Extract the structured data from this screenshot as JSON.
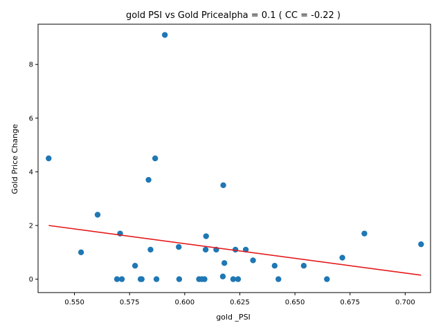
{
  "chart_data": {
    "type": "scatter",
    "title": "gold  PSI vs Gold Pricealpha = 0.1 ( CC = -0.22 )",
    "xlabel": "gold _PSI",
    "ylabel": "Gold Price Change",
    "xlim": [
      0.5335,
      0.7115
    ],
    "ylim": [
      -0.5,
      9.5
    ],
    "x_ticks": [
      0.55,
      0.575,
      0.6,
      0.625,
      0.65,
      0.675,
      0.7
    ],
    "x_tick_labels": [
      "0.550",
      "0.575",
      "0.600",
      "0.625",
      "0.650",
      "0.675",
      "0.700"
    ],
    "y_ticks": [
      0,
      2,
      4,
      6,
      8
    ],
    "y_tick_labels": [
      "0",
      "2",
      "4",
      "6",
      "8"
    ],
    "grid": false,
    "points": [
      {
        "x": 0.5383,
        "y": 4.5
      },
      {
        "x": 0.553,
        "y": 1.0
      },
      {
        "x": 0.5605,
        "y": 2.4
      },
      {
        "x": 0.5693,
        "y": 0.0
      },
      {
        "x": 0.5707,
        "y": 1.7
      },
      {
        "x": 0.5715,
        "y": 0.0
      },
      {
        "x": 0.5775,
        "y": 0.5
      },
      {
        "x": 0.58,
        "y": 0.0
      },
      {
        "x": 0.5805,
        "y": 0.0
      },
      {
        "x": 0.5836,
        "y": 3.7
      },
      {
        "x": 0.5845,
        "y": 1.1
      },
      {
        "x": 0.5866,
        "y": 4.5
      },
      {
        "x": 0.5872,
        "y": 0.0
      },
      {
        "x": 0.591,
        "y": 9.1
      },
      {
        "x": 0.5973,
        "y": 1.2
      },
      {
        "x": 0.5975,
        "y": 0.0
      },
      {
        "x": 0.6065,
        "y": 0.0
      },
      {
        "x": 0.6078,
        "y": 0.0
      },
      {
        "x": 0.609,
        "y": 0.0
      },
      {
        "x": 0.6095,
        "y": 1.1
      },
      {
        "x": 0.6097,
        "y": 1.6
      },
      {
        "x": 0.6143,
        "y": 1.1
      },
      {
        "x": 0.6173,
        "y": 0.1
      },
      {
        "x": 0.6175,
        "y": 3.5
      },
      {
        "x": 0.618,
        "y": 0.6
      },
      {
        "x": 0.622,
        "y": 0.0
      },
      {
        "x": 0.623,
        "y": 1.1
      },
      {
        "x": 0.6242,
        "y": 0.0
      },
      {
        "x": 0.6277,
        "y": 1.1
      },
      {
        "x": 0.631,
        "y": 0.7
      },
      {
        "x": 0.6408,
        "y": 0.5
      },
      {
        "x": 0.6425,
        "y": 0.0
      },
      {
        "x": 0.654,
        "y": 0.5
      },
      {
        "x": 0.6645,
        "y": 0.0
      },
      {
        "x": 0.6715,
        "y": 0.8
      },
      {
        "x": 0.6815,
        "y": 1.7
      },
      {
        "x": 0.7072,
        "y": 1.3
      }
    ],
    "regression_line": {
      "x": [
        0.5383,
        0.7072
      ],
      "y": [
        2.0,
        0.15
      ]
    },
    "colors": {
      "points": "#1f77b4",
      "line": "#e41a1c",
      "axes": "#000000"
    }
  }
}
